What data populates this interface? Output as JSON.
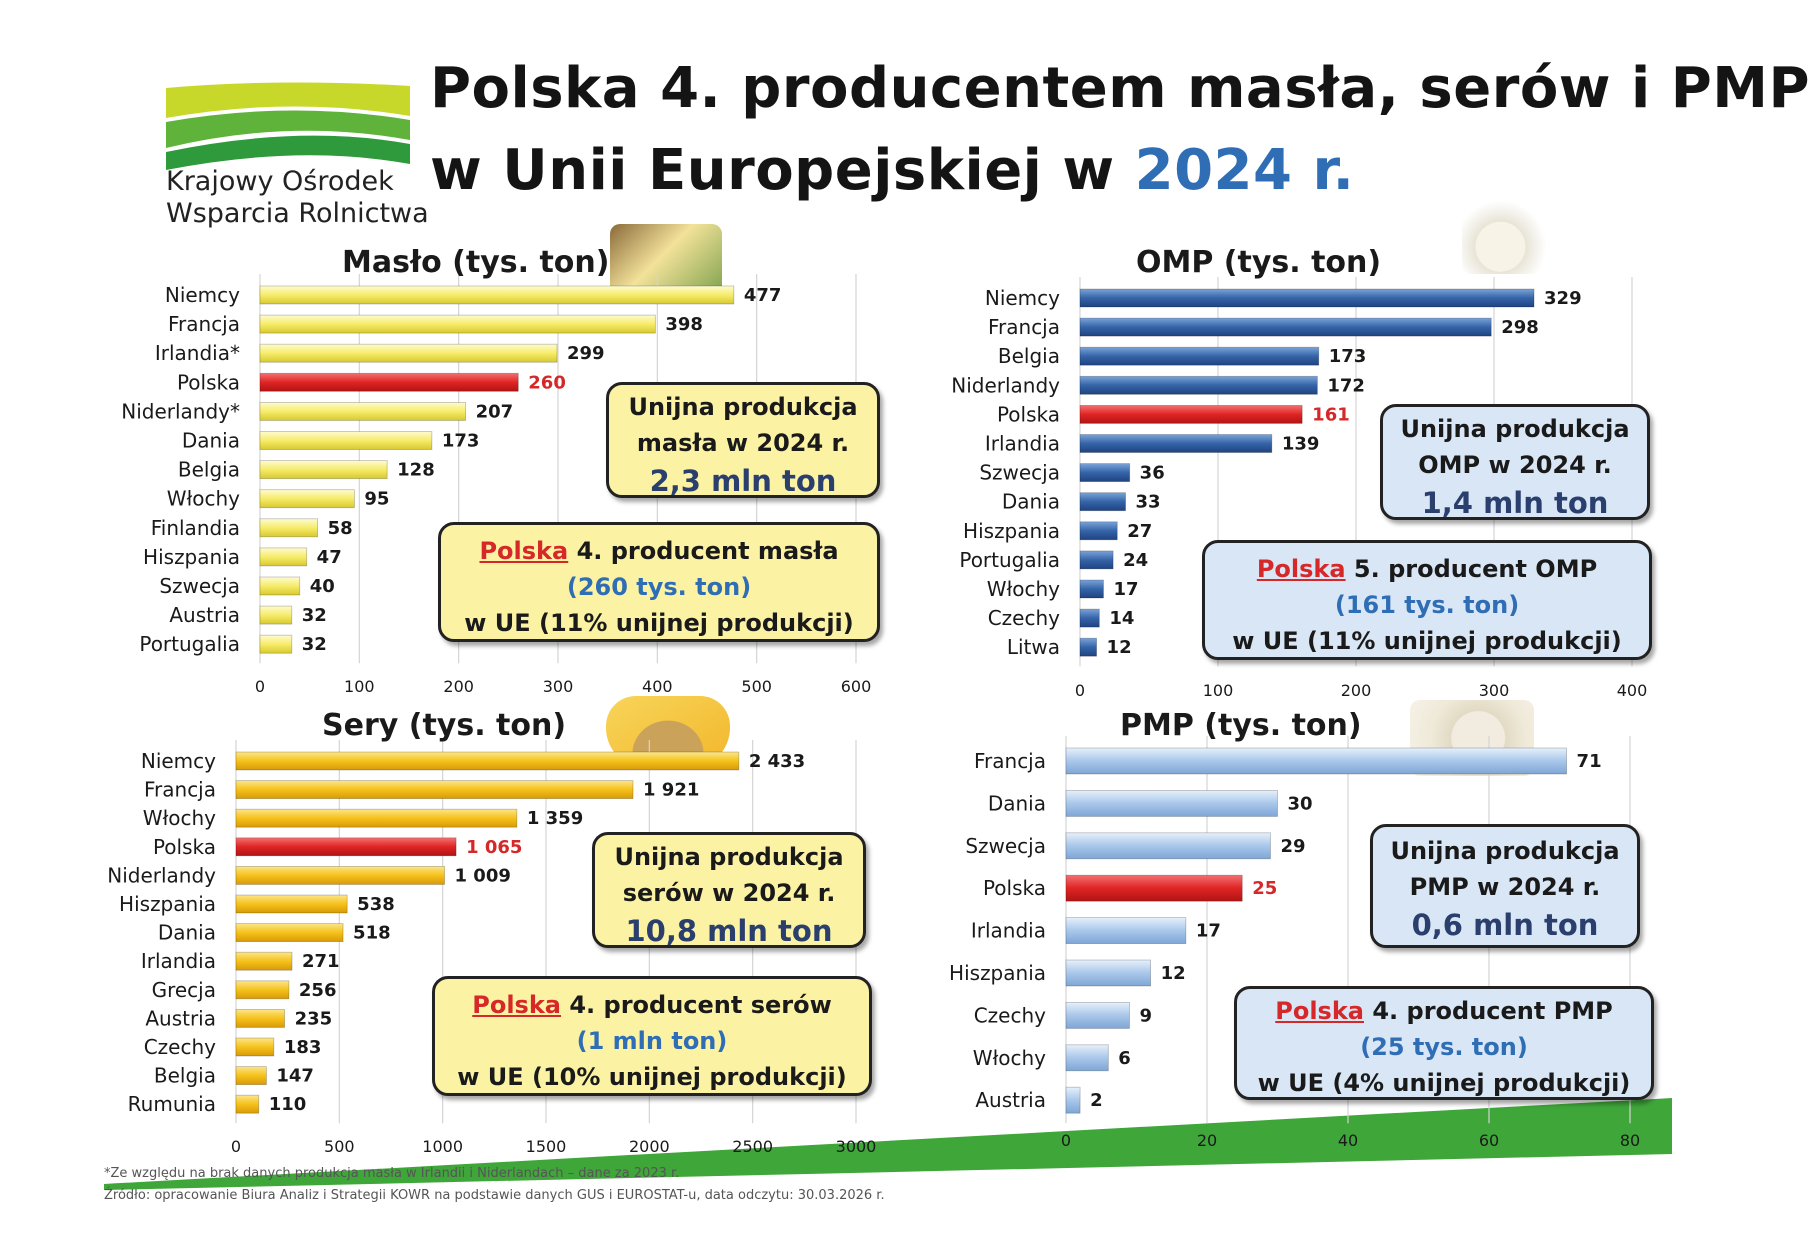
{
  "header": {
    "title_line1": "Polska 4. producentem masła, serów i PMP",
    "title_line2": "w Unii Europejskiej w ",
    "title_year": "2024 r.",
    "logo_line1": "Krajowy Ośrodek",
    "logo_line2": "Wsparcia Rolnictwa"
  },
  "colors": {
    "highlight": "#e02424",
    "maslo_bar": "#f6ec6a",
    "sery_bar": "#f5c21a",
    "omp_bar": "#3564a8",
    "pmp_bar": "#a9c7ea",
    "accent_blue": "#2f6db5"
  },
  "chart_data": [
    {
      "type": "bar",
      "orientation": "horizontal",
      "title": "Masło (tys. ton)",
      "categories": [
        "Niemcy",
        "Francja",
        "Irlandia*",
        "Polska",
        "Niderlandy*",
        "Dania",
        "Belgia",
        "Włochy",
        "Finlandia",
        "Hiszpania",
        "Szwecja",
        "Austria",
        "Portugalia"
      ],
      "values": [
        477,
        398,
        299,
        260,
        207,
        173,
        128,
        95,
        58,
        47,
        40,
        32,
        32
      ],
      "value_labels": [
        "477",
        "398",
        "299",
        "260",
        "207",
        "173",
        "128",
        "95",
        "58",
        "47",
        "40",
        "32",
        "32"
      ],
      "highlight": "Polska",
      "xlim": [
        0,
        600
      ],
      "xticks": [
        0,
        100,
        200,
        300,
        400,
        500,
        600
      ],
      "xtick_labels": [
        "0",
        "100",
        "200",
        "300",
        "400",
        "500",
        "600"
      ],
      "grid": true
    },
    {
      "type": "bar",
      "orientation": "horizontal",
      "title": "OMP (tys. ton)",
      "categories": [
        "Niemcy",
        "Francja",
        "Belgia",
        "Niderlandy",
        "Polska",
        "Irlandia",
        "Szwecja",
        "Dania",
        "Hiszpania",
        "Portugalia",
        "Włochy",
        "Czechy",
        "Litwa"
      ],
      "values": [
        329,
        298,
        173,
        172,
        161,
        139,
        36,
        33,
        27,
        24,
        17,
        14,
        12
      ],
      "value_labels": [
        "329",
        "298",
        "173",
        "172",
        "161",
        "139",
        "36",
        "33",
        "27",
        "24",
        "17",
        "14",
        "12"
      ],
      "highlight": "Polska",
      "xlim": [
        0,
        400
      ],
      "xticks": [
        0,
        100,
        200,
        300,
        400
      ],
      "xtick_labels": [
        "0",
        "100",
        "200",
        "300",
        "400"
      ],
      "grid": true
    },
    {
      "type": "bar",
      "orientation": "horizontal",
      "title": "Sery (tys. ton)",
      "categories": [
        "Niemcy",
        "Francja",
        "Włochy",
        "Polska",
        "Niderlandy",
        "Hiszpania",
        "Dania",
        "Irlandia",
        "Grecja",
        "Austria",
        "Czechy",
        "Belgia",
        "Rumunia"
      ],
      "values": [
        2433,
        1921,
        1359,
        1065,
        1009,
        538,
        518,
        271,
        256,
        235,
        183,
        147,
        110
      ],
      "value_labels": [
        "2 433",
        "1 921",
        "1 359",
        "1 065",
        "1 009",
        "538",
        "518",
        "271",
        "256",
        "235",
        "183",
        "147",
        "110"
      ],
      "highlight": "Polska",
      "xlim": [
        0,
        3000
      ],
      "xticks": [
        0,
        500,
        1000,
        1500,
        2000,
        2500,
        3000
      ],
      "xtick_labels": [
        "0",
        "500",
        "1000",
        "1500",
        "2000",
        "2500",
        "3000"
      ],
      "grid": true
    },
    {
      "type": "bar",
      "orientation": "horizontal",
      "title": "PMP (tys. ton)",
      "categories": [
        "Francja",
        "Dania",
        "Szwecja",
        "Polska",
        "Irlandia",
        "Hiszpania",
        "Czechy",
        "Włochy",
        "Austria"
      ],
      "values": [
        71,
        30,
        29,
        25,
        17,
        12,
        9,
        6,
        2
      ],
      "value_labels": [
        "71",
        "30",
        "29",
        "25",
        "17",
        "12",
        "9",
        "6",
        "2"
      ],
      "highlight": "Polska",
      "xlim": [
        0,
        80
      ],
      "xticks": [
        0,
        20,
        40,
        60,
        80
      ],
      "xtick_labels": [
        "0",
        "20",
        "40",
        "60",
        "80"
      ],
      "grid": true
    }
  ],
  "boxes": {
    "maslo_eu": {
      "l1": "Unijna produkcja",
      "l2": "masła w 2024 r.",
      "big": "2,3 mln ton"
    },
    "maslo_pl": {
      "pl": "Polska",
      "l1_rest": " 4. producent masła",
      "paren": "(260 tys. ton)",
      "l3": "w UE (11% unijnej produkcji)"
    },
    "omp_eu": {
      "l1": "Unijna produkcja",
      "l2": "OMP w 2024 r.",
      "big": "1,4 mln ton"
    },
    "omp_pl": {
      "pl": "Polska",
      "l1_rest": " 5. producent OMP",
      "paren": "(161 tys. ton)",
      "l3": "w UE (11% unijnej produkcji)"
    },
    "sery_eu": {
      "l1": "Unijna produkcja",
      "l2": "serów w 2024 r.",
      "big": "10,8 mln ton"
    },
    "sery_pl": {
      "pl": "Polska",
      "l1_rest": " 4. producent serów",
      "paren": "(1 mln ton)",
      "l3": "w UE (10% unijnej produkcji)"
    },
    "pmp_eu": {
      "l1": "Unijna produkcja",
      "l2": "PMP w 2024 r.",
      "big": "0,6 mln ton"
    },
    "pmp_pl": {
      "pl": "Polska",
      "l1_rest": " 4. producent PMP",
      "paren": "(25 tys. ton)",
      "l3": "w UE (4% unijnej produkcji)"
    }
  },
  "footer": {
    "note": "*Ze względu na brak danych produkcja masła w Irlandii i Niderlandach – dane za 2023 r.",
    "source": "Źródło: opracowanie Biura Analiz i Strategii KOWR na podstawie danych GUS i EUROSTAT-u, data odczytu: 30.03.2026 r."
  }
}
